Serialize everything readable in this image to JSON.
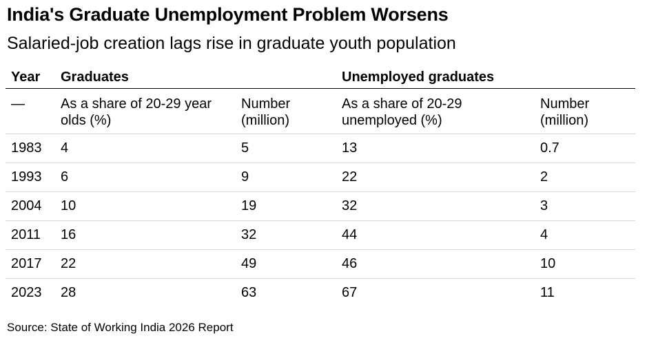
{
  "chart_data": {
    "type": "table",
    "title": "India's Graduate Unemployment Problem Worsens",
    "subtitle": "Salaried-job creation lags rise in graduate youth population",
    "group_headers": [
      "Year",
      "Graduates",
      "Unemployed graduates"
    ],
    "column_headers": [
      "—",
      "As a share of 20-29 year olds (%)",
      "Number (million)",
      "As a share of 20-29 unemployed (%)",
      "Number (million)"
    ],
    "rows": [
      {
        "year": "1983",
        "grad_share": "4",
        "grad_number": "5",
        "unemp_share": "13",
        "unemp_number": "0.7"
      },
      {
        "year": "1993",
        "grad_share": "6",
        "grad_number": "9",
        "unemp_share": "22",
        "unemp_number": "2"
      },
      {
        "year": "2004",
        "grad_share": "10",
        "grad_number": "19",
        "unemp_share": "32",
        "unemp_number": "3"
      },
      {
        "year": "2011",
        "grad_share": "16",
        "grad_number": "32",
        "unemp_share": "44",
        "unemp_number": "4"
      },
      {
        "year": "2017",
        "grad_share": "22",
        "grad_number": "49",
        "unemp_share": "46",
        "unemp_number": "10"
      },
      {
        "year": "2023",
        "grad_share": "28",
        "grad_number": "63",
        "unemp_share": "67",
        "unemp_number": "11"
      }
    ],
    "source": "Source: State of Working India 2026 Report"
  }
}
